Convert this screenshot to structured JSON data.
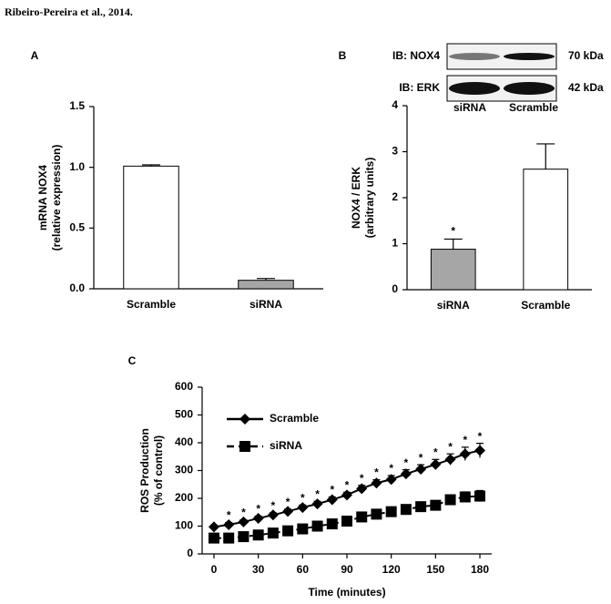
{
  "header": {
    "title": "Ribeiro-Pereira et al., 2014."
  },
  "chart_data": [
    {
      "type": "bar",
      "panel": "A",
      "ylabel": [
        "mRNA NOX4",
        "(relative expression)"
      ],
      "categories": [
        "Scramble",
        "siRNA"
      ],
      "values": [
        1.01,
        0.07
      ],
      "errors": [
        0.01,
        0.015
      ],
      "colors": [
        "#ffffff",
        "#a6a6a6"
      ],
      "ylim": [
        0,
        1.5
      ],
      "yticks": [
        {
          "value": 0,
          "label": "0.0"
        },
        0.5,
        {
          "value": 1,
          "label": "1.0"
        },
        1.5
      ]
    },
    {
      "type": "bar",
      "panel": "B",
      "ylabel": [
        "NOX4 / ERK",
        "(arbitrary units)"
      ],
      "categories": [
        "siRNA",
        "Scramble"
      ],
      "values": [
        0.88,
        2.62
      ],
      "errors": [
        0.22,
        0.55
      ],
      "colors": [
        "#a6a6a6",
        "#ffffff"
      ],
      "significance": [
        "*",
        null
      ],
      "ylim": [
        0,
        4
      ],
      "yticks": [
        0,
        1,
        2,
        3,
        4
      ],
      "blot": {
        "rows": [
          {
            "label": "IB: NOX4",
            "size": "70 kDa"
          },
          {
            "label": "IB: ERK",
            "size": "42 kDa"
          }
        ],
        "lanes": [
          "siRNA",
          "Scramble"
        ]
      }
    },
    {
      "type": "line",
      "panel": "C",
      "ylabel": [
        "ROS Production",
        "(% of control)"
      ],
      "xlabel": "Time (minutes)",
      "x": [
        0,
        10,
        20,
        30,
        40,
        50,
        60,
        70,
        80,
        90,
        100,
        110,
        120,
        130,
        140,
        150,
        160,
        170,
        180
      ],
      "series": [
        {
          "name": "Scramble",
          "color": "#000000",
          "marker": "diamond",
          "line_style": "solid",
          "values": [
            97,
            105,
            115,
            128,
            140,
            153,
            167,
            180,
            195,
            212,
            235,
            255,
            268,
            288,
            305,
            322,
            340,
            360,
            372
          ],
          "errors": [
            6,
            8,
            8,
            8,
            8,
            8,
            9,
            9,
            10,
            10,
            12,
            12,
            14,
            15,
            16,
            18,
            20,
            24,
            26
          ],
          "significance": [
            null,
            "*",
            "*",
            "*",
            "*",
            "*",
            "*",
            "*",
            "*",
            "*",
            "*",
            "*",
            "*",
            "*",
            "*",
            "*",
            "*",
            "*",
            "*"
          ]
        },
        {
          "name": "siRNA",
          "color": "#000000",
          "marker": "square",
          "line_style": "dashed",
          "values": [
            57,
            57,
            62,
            68,
            75,
            83,
            90,
            100,
            108,
            118,
            133,
            143,
            152,
            160,
            170,
            175,
            195,
            205,
            208
          ],
          "errors": [
            10,
            8,
            8,
            8,
            8,
            8,
            8,
            8,
            8,
            8,
            10,
            10,
            10,
            10,
            12,
            12,
            14,
            18,
            20
          ]
        }
      ],
      "legend": "upper left",
      "xlim": [
        -8,
        188
      ],
      "xticks": [
        0,
        30,
        60,
        90,
        120,
        150,
        180
      ],
      "ylim": [
        0,
        600
      ],
      "yticks": [
        0,
        100,
        200,
        300,
        400,
        500,
        600
      ]
    }
  ]
}
